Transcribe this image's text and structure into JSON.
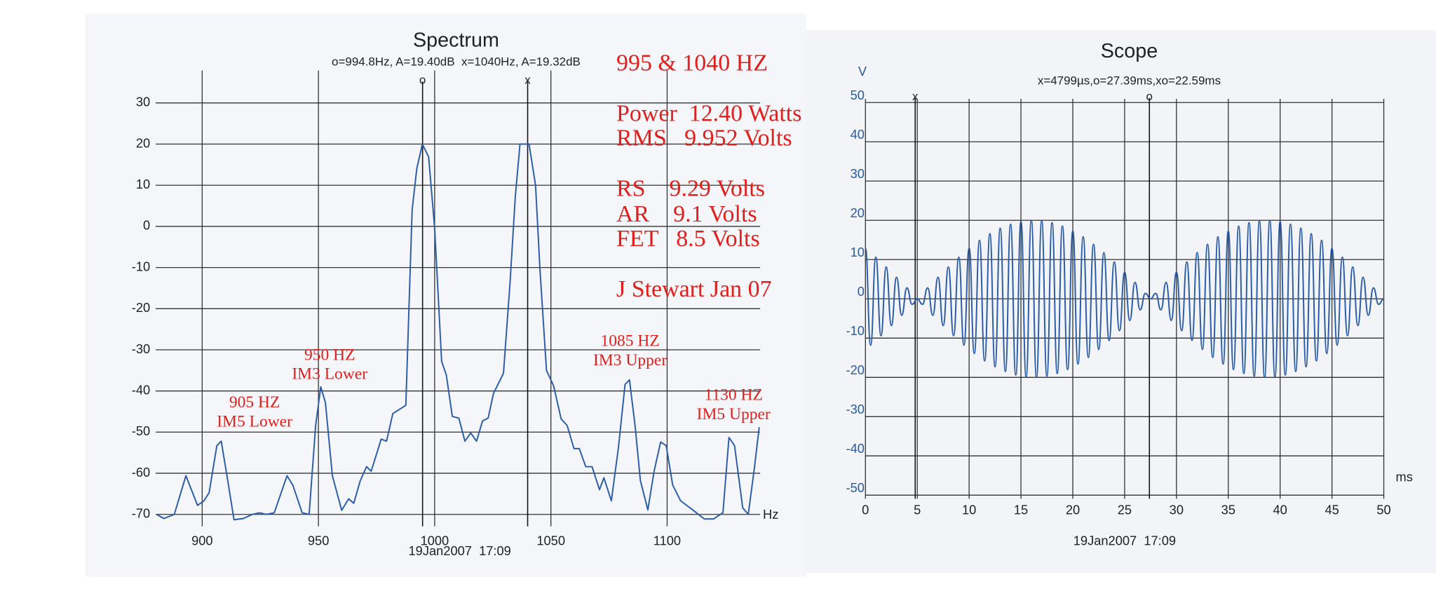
{
  "chart_data": [
    {
      "type": "line",
      "title": "Spectrum",
      "subtitle": "o=994.8Hz, A=19.40dB  x=1040Hz, A=19.32dB",
      "x_label": "Hz",
      "footer": "19Jan2007  17:09",
      "xlim": [
        880,
        1140
      ],
      "ylim": [
        -72,
        37
      ],
      "xticks": [
        900,
        950,
        1000,
        1050,
        1100
      ],
      "yticks": [
        30,
        20,
        10,
        0,
        -10,
        -20,
        -30,
        -40,
        -50,
        -60,
        -70
      ],
      "grid": true,
      "color": "#2b5ca8",
      "cursors": [
        {
          "label": "o",
          "x": 994.8
        },
        {
          "label": "x",
          "x": 1040
        }
      ],
      "x": [
        880.4,
        883.5,
        888,
        893,
        898,
        900.8,
        903,
        906.3,
        908.2,
        911,
        913.7,
        917.7,
        921.6,
        924.7,
        927.5,
        931,
        936.5,
        939,
        943,
        946,
        948.8,
        951,
        953,
        956,
        960,
        963,
        965.2,
        968,
        970.7,
        972.7,
        977,
        979.3,
        982,
        987.6,
        990.3,
        992.3,
        994.7,
        997.4,
        1000,
        1003,
        1005,
        1007.6,
        1010.4,
        1013,
        1015.5,
        1018,
        1020.6,
        1023,
        1025.3,
        1029.6,
        1032.4,
        1034.7,
        1036.7,
        1040.6,
        1043.4,
        1045.3,
        1048.1,
        1051.2,
        1054.4,
        1057,
        1059.9,
        1062.2,
        1065,
        1067.7,
        1070.9,
        1072.8,
        1076,
        1079,
        1081.9,
        1083.8,
        1086.2,
        1088.5,
        1091.7,
        1094.4,
        1097.2,
        1099.6,
        1102.4,
        1105.8,
        1111,
        1116,
        1120,
        1124,
        1126.6,
        1129,
        1132.5,
        1134.9,
        1137.6,
        1139.6
      ],
      "values": [
        -70,
        -71,
        -70,
        -60.6,
        -67.8,
        -66.7,
        -64.7,
        -53.3,
        -52.2,
        -61.8,
        -71.3,
        -71,
        -70,
        -69.6,
        -70,
        -69.6,
        -60.6,
        -62.9,
        -69.6,
        -70,
        -48.4,
        -39,
        -42.8,
        -60.6,
        -69,
        -66.2,
        -67.3,
        -61.8,
        -58.4,
        -59.5,
        -51.7,
        -52.2,
        -45.5,
        -43.5,
        3.9,
        14,
        20,
        16.9,
        -0.5,
        -32.8,
        -36.1,
        -46.2,
        -46.6,
        -52.2,
        -50.2,
        -52.2,
        -47.3,
        -46.6,
        -40.6,
        -35.7,
        -13.9,
        7.3,
        20,
        20,
        10,
        -10.5,
        -35,
        -38.8,
        -46.8,
        -48.4,
        -54,
        -54,
        -58.4,
        -58.4,
        -64,
        -61.1,
        -66.7,
        -54,
        -38.4,
        -37.3,
        -48.4,
        -61.8,
        -68.9,
        -59.5,
        -52.4,
        -53.3,
        -62.9,
        -66.7,
        -68.9,
        -71.1,
        -71.1,
        -69.6,
        -51.3,
        -53.3,
        -68.4,
        -70,
        -58.4,
        -48.8
      ],
      "annotations": [
        "995 & 1040 HZ",
        "Power  12.40 Watts",
        "RMS   9.952 Volts",
        "RS    9.29 Volts",
        "AR    9.1 Volts",
        "FET   8.5 Volts",
        "J Stewart Jan 07",
        "950 HZ",
        "IM3 Lower",
        "905 HZ",
        "IM5 Lower",
        "1085 HZ",
        "IM3 Upper",
        "1130 HZ",
        "IM5 Upper"
      ]
    },
    {
      "type": "line",
      "title": "Scope",
      "subtitle": "x=4799µs,o=27.39ms,xo=22.59ms",
      "x_label": "ms",
      "y_label": "V",
      "footer": "19Jan2007  17:09",
      "xlim": [
        0,
        50
      ],
      "ylim": [
        -50,
        50
      ],
      "xticks": [
        0,
        5,
        10,
        15,
        20,
        25,
        30,
        35,
        40,
        45,
        50
      ],
      "yticks": [
        50,
        40,
        30,
        20,
        10,
        0,
        -10,
        -20,
        -30,
        -40,
        -50
      ],
      "grid": true,
      "color": "#2b5ca8",
      "cursors": [
        {
          "label": "x",
          "x": 4.799
        },
        {
          "label": "o",
          "x": 27.39
        }
      ],
      "x": [
        0,
        0.5,
        1,
        1.5,
        2,
        2.5,
        3,
        3.5,
        4,
        4.5,
        5,
        5.5,
        6,
        6.5,
        7,
        7.5,
        8,
        8.5,
        9,
        9.5,
        10,
        10.5,
        11,
        11.5,
        12,
        12.5,
        13,
        13.5,
        14,
        14.5,
        15,
        15.5,
        16,
        16.5,
        17,
        17.5,
        18,
        18.5,
        19,
        19.5,
        20,
        20.5,
        21,
        21.5,
        22,
        22.5,
        23,
        23.5,
        24,
        24.5,
        25,
        25.5,
        26,
        26.5,
        27,
        27.5,
        28,
        28.5,
        29,
        29.5,
        30,
        30.5,
        31,
        31.5,
        32,
        32.5,
        33,
        33.5,
        34,
        34.5,
        35,
        35.5,
        36,
        36.5,
        37,
        37.5,
        38,
        38.5,
        39,
        39.5,
        40,
        40.5,
        41,
        41.5,
        42,
        42.5,
        43,
        43.5,
        44,
        44.5,
        45,
        45.5,
        46,
        46.5,
        47,
        47.5,
        48,
        48.5,
        49,
        49.5,
        50
      ],
      "values": [
        12.9,
        -11.8,
        10.6,
        -9.4,
        8.1,
        -6.8,
        5.5,
        -4.2,
        2.8,
        -1.4,
        0,
        -1.4,
        2.8,
        -4.2,
        5.5,
        -6.8,
        8.1,
        -9.4,
        10.6,
        -11.8,
        12.9,
        -13.9,
        14.9,
        -15.8,
        16.6,
        -17.3,
        18.0,
        -18.5,
        19.0,
        -19.4,
        19.7,
        -19.9,
        20.0,
        -20.0,
        19.9,
        -19.7,
        19.4,
        -19.0,
        18.5,
        -18.0,
        17.3,
        -16.6,
        15.8,
        -14.9,
        13.9,
        -12.9,
        11.8,
        -10.6,
        9.4,
        -8.1,
        6.8,
        -5.5,
        4.2,
        -2.8,
        1.4,
        0,
        1.4,
        -2.8,
        4.2,
        -5.5,
        6.8,
        -8.1,
        9.4,
        -10.6,
        11.8,
        -12.9,
        13.9,
        -14.9,
        15.8,
        -16.6,
        17.3,
        -18.0,
        18.5,
        -19.0,
        19.4,
        -19.7,
        19.9,
        -20.0,
        20.0,
        -19.9,
        19.7,
        -19.4,
        19.0,
        -18.5,
        18.0,
        -17.3,
        16.6,
        -15.8,
        14.9,
        -13.9,
        12.9,
        -11.8,
        10.6,
        -9.4,
        8.1,
        -6.8,
        5.5,
        -4.2,
        2.8,
        -1.4,
        0
      ]
    }
  ]
}
